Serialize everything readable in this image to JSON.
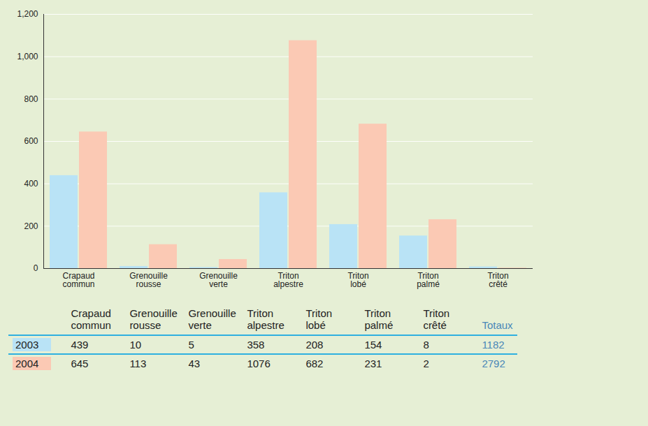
{
  "chart_data": {
    "type": "bar",
    "categories": [
      "Crapaud commun",
      "Grenouille rousse",
      "Grenouille verte",
      "Triton alpestre",
      "Triton lobé",
      "Triton palmé",
      "Triton crêté"
    ],
    "series": [
      {
        "name": "2003",
        "color": "#b9e3f6",
        "values": [
          439,
          10,
          5,
          358,
          208,
          154,
          8
        ],
        "total": 1182
      },
      {
        "name": "2004",
        "color": "#fbc9b4",
        "values": [
          645,
          113,
          43,
          1076,
          682,
          231,
          2
        ],
        "total": 2792
      }
    ],
    "total_label": "Totaux",
    "ylim": [
      0,
      1200
    ],
    "yticks": [
      0,
      200,
      400,
      600,
      800,
      1000,
      1200
    ],
    "grid": true
  }
}
